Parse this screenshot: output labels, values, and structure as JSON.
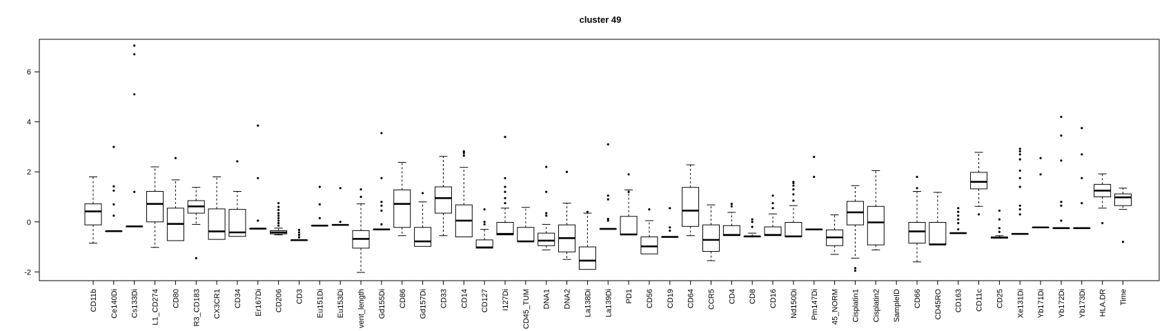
{
  "chart_data": {
    "type": "boxplot",
    "title": "cluster 49",
    "xlabel": "",
    "ylabel": "",
    "ylim": [
      -2.35,
      7.3
    ],
    "yticks": [
      -2,
      0,
      2,
      4,
      6
    ],
    "grid": false,
    "legend": "none",
    "boxes": [
      {
        "name": "CD11b",
        "q1": -0.12,
        "median": 0.42,
        "q3": 0.72,
        "wlow": -0.85,
        "whigh": 1.8,
        "outliers": []
      },
      {
        "name": "Ce140Di",
        "q1": -0.37,
        "median": -0.37,
        "q3": -0.37,
        "wlow": -0.37,
        "whigh": -0.37,
        "outliers": [
          0.25,
          0.7,
          1.25,
          1.42,
          3.0
        ]
      },
      {
        "name": "Cs133Di",
        "q1": -0.18,
        "median": -0.18,
        "q3": -0.18,
        "wlow": -0.18,
        "whigh": -0.18,
        "outliers": [
          1.2,
          5.1,
          6.7,
          7.05
        ]
      },
      {
        "name": "L1_CD274",
        "q1": 0.0,
        "median": 0.72,
        "q3": 1.22,
        "wlow": -1.02,
        "whigh": 2.2,
        "outliers": []
      },
      {
        "name": "CD80",
        "q1": -0.75,
        "median": -0.08,
        "q3": 0.55,
        "wlow": -0.75,
        "whigh": 1.68,
        "outliers": [
          2.55
        ]
      },
      {
        "name": "R3_CD183",
        "q1": 0.35,
        "median": 0.62,
        "q3": 0.85,
        "wlow": -0.1,
        "whigh": 1.38,
        "outliers": [
          -1.45
        ]
      },
      {
        "name": "CX3CR1",
        "q1": -0.7,
        "median": -0.38,
        "q3": 0.52,
        "wlow": -0.7,
        "whigh": 1.8,
        "outliers": []
      },
      {
        "name": "CD34",
        "q1": -0.58,
        "median": -0.42,
        "q3": 0.5,
        "wlow": -0.58,
        "whigh": 1.22,
        "outliers": [
          2.42
        ]
      },
      {
        "name": "Er167Di",
        "q1": -0.27,
        "median": -0.27,
        "q3": -0.27,
        "wlow": -0.27,
        "whigh": -0.27,
        "outliers": [
          0.05,
          1.75,
          3.85
        ]
      },
      {
        "name": "CD206",
        "q1": -0.48,
        "median": -0.42,
        "q3": -0.35,
        "wlow": -0.52,
        "whigh": -0.25,
        "outliers": [
          -0.15,
          -0.05,
          0.05,
          0.15,
          0.25,
          0.35,
          0.48,
          0.6,
          0.75
        ]
      },
      {
        "name": "CD3",
        "q1": -0.73,
        "median": -0.73,
        "q3": -0.73,
        "wlow": -0.73,
        "whigh": -0.73,
        "outliers": [
          -0.62,
          -0.52,
          -0.42,
          -0.32
        ]
      },
      {
        "name": "Eu151Di",
        "q1": -0.15,
        "median": -0.15,
        "q3": -0.15,
        "wlow": -0.15,
        "whigh": -0.15,
        "outliers": [
          0.15,
          0.7,
          1.4
        ]
      },
      {
        "name": "Eu153Di",
        "q1": -0.12,
        "median": -0.12,
        "q3": -0.12,
        "wlow": -0.12,
        "whigh": -0.12,
        "outliers": [
          0.0,
          1.35
        ]
      },
      {
        "name": "vent_length",
        "q1": -1.05,
        "median": -0.68,
        "q3": -0.35,
        "wlow": -2.02,
        "whigh": 0.72,
        "outliers": [
          1.0,
          1.3
        ]
      },
      {
        "name": "Gd155Di",
        "q1": -0.3,
        "median": -0.3,
        "q3": -0.3,
        "wlow": -0.3,
        "whigh": -0.3,
        "outliers": [
          -0.1,
          0.45,
          0.65,
          0.8,
          1.75,
          3.55
        ]
      },
      {
        "name": "CD86",
        "q1": -0.22,
        "median": 0.72,
        "q3": 1.28,
        "wlow": -0.55,
        "whigh": 2.38,
        "outliers": []
      },
      {
        "name": "Gd157Di",
        "q1": -0.98,
        "median": -0.78,
        "q3": -0.22,
        "wlow": -0.98,
        "whigh": 0.8,
        "outliers": [
          1.15
        ]
      },
      {
        "name": "CD33",
        "q1": 0.35,
        "median": 0.95,
        "q3": 1.4,
        "wlow": -0.55,
        "whigh": 2.62,
        "outliers": []
      },
      {
        "name": "CD14",
        "q1": -0.6,
        "median": 0.05,
        "q3": 0.68,
        "wlow": -0.6,
        "whigh": 2.18,
        "outliers": [
          2.65,
          2.75,
          2.82
        ]
      },
      {
        "name": "CD127",
        "q1": -1.05,
        "median": -1.02,
        "q3": -0.72,
        "wlow": -1.05,
        "whigh": -0.3,
        "outliers": [
          -0.1,
          0.0,
          0.5
        ]
      },
      {
        "name": "I127Di",
        "q1": -0.52,
        "median": -0.48,
        "q3": -0.02,
        "wlow": -0.52,
        "whigh": 0.55,
        "outliers": [
          0.75,
          0.95,
          1.2,
          1.4,
          1.75,
          3.4
        ]
      },
      {
        "name": "CD45_TUM",
        "q1": -0.78,
        "median": -0.78,
        "q3": -0.22,
        "wlow": -0.78,
        "whigh": 0.58,
        "outliers": []
      },
      {
        "name": "DNA1",
        "q1": -0.95,
        "median": -0.75,
        "q3": -0.45,
        "wlow": -1.12,
        "whigh": -0.1,
        "outliers": [
          0.25,
          0.35,
          1.2,
          2.2
        ]
      },
      {
        "name": "DNA2",
        "q1": -1.2,
        "median": -0.65,
        "q3": -0.12,
        "wlow": -1.5,
        "whigh": 0.75,
        "outliers": [
          2.0
        ]
      },
      {
        "name": "La138Di",
        "q1": -1.9,
        "median": -1.55,
        "q3": -1.0,
        "wlow": -1.9,
        "whigh": 0.35,
        "outliers": [
          0.4
        ]
      },
      {
        "name": "La139Di",
        "q1": -0.28,
        "median": -0.28,
        "q3": -0.28,
        "wlow": -0.28,
        "whigh": -0.28,
        "outliers": [
          0.05,
          0.12,
          0.9,
          1.05,
          3.1
        ]
      },
      {
        "name": "PD1",
        "q1": -0.52,
        "median": -0.5,
        "q3": 0.22,
        "wlow": -0.52,
        "whigh": 1.28,
        "outliers": [
          1.2,
          1.9
        ]
      },
      {
        "name": "CD56",
        "q1": -1.28,
        "median": -0.98,
        "q3": -0.6,
        "wlow": -1.28,
        "whigh": 0.05,
        "outliers": [
          0.5
        ]
      },
      {
        "name": "CD19",
        "q1": -0.6,
        "median": -0.6,
        "q3": -0.6,
        "wlow": -0.6,
        "whigh": -0.6,
        "outliers": [
          -0.35,
          -0.22,
          0.55
        ]
      },
      {
        "name": "CD64",
        "q1": -0.18,
        "median": 0.45,
        "q3": 1.38,
        "wlow": -0.55,
        "whigh": 2.28,
        "outliers": []
      },
      {
        "name": "CCR5",
        "q1": -1.18,
        "median": -0.72,
        "q3": -0.12,
        "wlow": -1.55,
        "whigh": 0.68,
        "outliers": []
      },
      {
        "name": "CD4",
        "q1": -0.55,
        "median": -0.52,
        "q3": -0.15,
        "wlow": -0.55,
        "whigh": 0.38,
        "outliers": [
          0.62,
          0.72
        ]
      },
      {
        "name": "CD8",
        "q1": -0.6,
        "median": -0.58,
        "q3": -0.58,
        "wlow": -0.6,
        "whigh": -0.45,
        "outliers": [
          -0.2,
          0.0,
          0.1
        ]
      },
      {
        "name": "CD16",
        "q1": -0.55,
        "median": -0.52,
        "q3": -0.2,
        "wlow": -0.55,
        "whigh": 0.32,
        "outliers": [
          0.55,
          0.75,
          1.05
        ]
      },
      {
        "name": "Nd150Di",
        "q1": -0.6,
        "median": -0.58,
        "q3": -0.02,
        "wlow": -0.6,
        "whigh": 0.65,
        "outliers": [
          0.85,
          1.1,
          1.3,
          1.45,
          1.55,
          1.6
        ]
      },
      {
        "name": "Pm147Di",
        "q1": -0.3,
        "median": -0.3,
        "q3": -0.3,
        "wlow": -0.3,
        "whigh": -0.3,
        "outliers": [
          1.8,
          2.6
        ]
      },
      {
        "name": "45_NORM",
        "q1": -0.95,
        "median": -0.62,
        "q3": -0.32,
        "wlow": -1.3,
        "whigh": 0.28,
        "outliers": []
      },
      {
        "name": "Cisplatin1",
        "q1": -0.12,
        "median": 0.38,
        "q3": 0.82,
        "wlow": -1.45,
        "whigh": 1.45,
        "outliers": [
          -1.85,
          -1.95
        ]
      },
      {
        "name": "Cisplatin2",
        "q1": -0.92,
        "median": -0.02,
        "q3": 0.62,
        "wlow": -1.12,
        "whigh": 2.05,
        "outliers": []
      },
      {
        "name": "SampleID",
        "q1": null,
        "median": null,
        "q3": null,
        "wlow": null,
        "whigh": null,
        "outliers": []
      },
      {
        "name": "CD66",
        "q1": -0.85,
        "median": -0.38,
        "q3": -0.02,
        "wlow": -1.6,
        "whigh": 1.22,
        "outliers": [
          1.35,
          1.8
        ]
      },
      {
        "name": "CD45RO",
        "q1": -0.92,
        "median": -0.9,
        "q3": -0.02,
        "wlow": -0.92,
        "whigh": 1.18,
        "outliers": []
      },
      {
        "name": "CD163",
        "q1": -0.45,
        "median": -0.45,
        "q3": -0.45,
        "wlow": -0.45,
        "whigh": -0.45,
        "outliers": [
          -0.3,
          -0.05,
          0.1,
          0.25,
          0.4,
          0.55
        ]
      },
      {
        "name": "CD11c",
        "q1": 1.32,
        "median": 1.6,
        "q3": 1.98,
        "wlow": 0.62,
        "whigh": 2.78,
        "outliers": [
          0.3
        ]
      },
      {
        "name": "CD25",
        "q1": -0.65,
        "median": -0.63,
        "q3": -0.6,
        "wlow": -0.65,
        "whigh": -0.55,
        "outliers": [
          -0.4,
          -0.25,
          0.1,
          0.45
        ]
      },
      {
        "name": "Xe131Di",
        "q1": -0.48,
        "median": -0.48,
        "q3": -0.48,
        "wlow": -0.48,
        "whigh": -0.48,
        "outliers": [
          0.3,
          0.5,
          0.65,
          1.4,
          1.75,
          2.05,
          2.5,
          2.7,
          2.82,
          2.92
        ]
      },
      {
        "name": "Yb171Di",
        "q1": -0.22,
        "median": -0.22,
        "q3": -0.22,
        "wlow": -0.22,
        "whigh": -0.22,
        "outliers": [
          1.9,
          2.55
        ]
      },
      {
        "name": "Yb172Di",
        "q1": -0.25,
        "median": -0.25,
        "q3": -0.25,
        "wlow": -0.25,
        "whigh": -0.25,
        "outliers": [
          0.05,
          0.65,
          0.8,
          2.45,
          3.45,
          4.2
        ]
      },
      {
        "name": "Yb173Di",
        "q1": -0.25,
        "median": -0.25,
        "q3": -0.25,
        "wlow": -0.25,
        "whigh": -0.25,
        "outliers": [
          0.75,
          1.75,
          2.7,
          3.75
        ]
      },
      {
        "name": "HLA.DR",
        "q1": 1.0,
        "median": 1.25,
        "q3": 1.5,
        "wlow": 0.55,
        "whigh": 1.92,
        "outliers": [
          -0.05
        ]
      },
      {
        "name": "Time",
        "q1": 0.65,
        "median": 0.98,
        "q3": 1.12,
        "wlow": 0.5,
        "whigh": 1.35,
        "outliers": [
          -0.8
        ]
      }
    ]
  }
}
